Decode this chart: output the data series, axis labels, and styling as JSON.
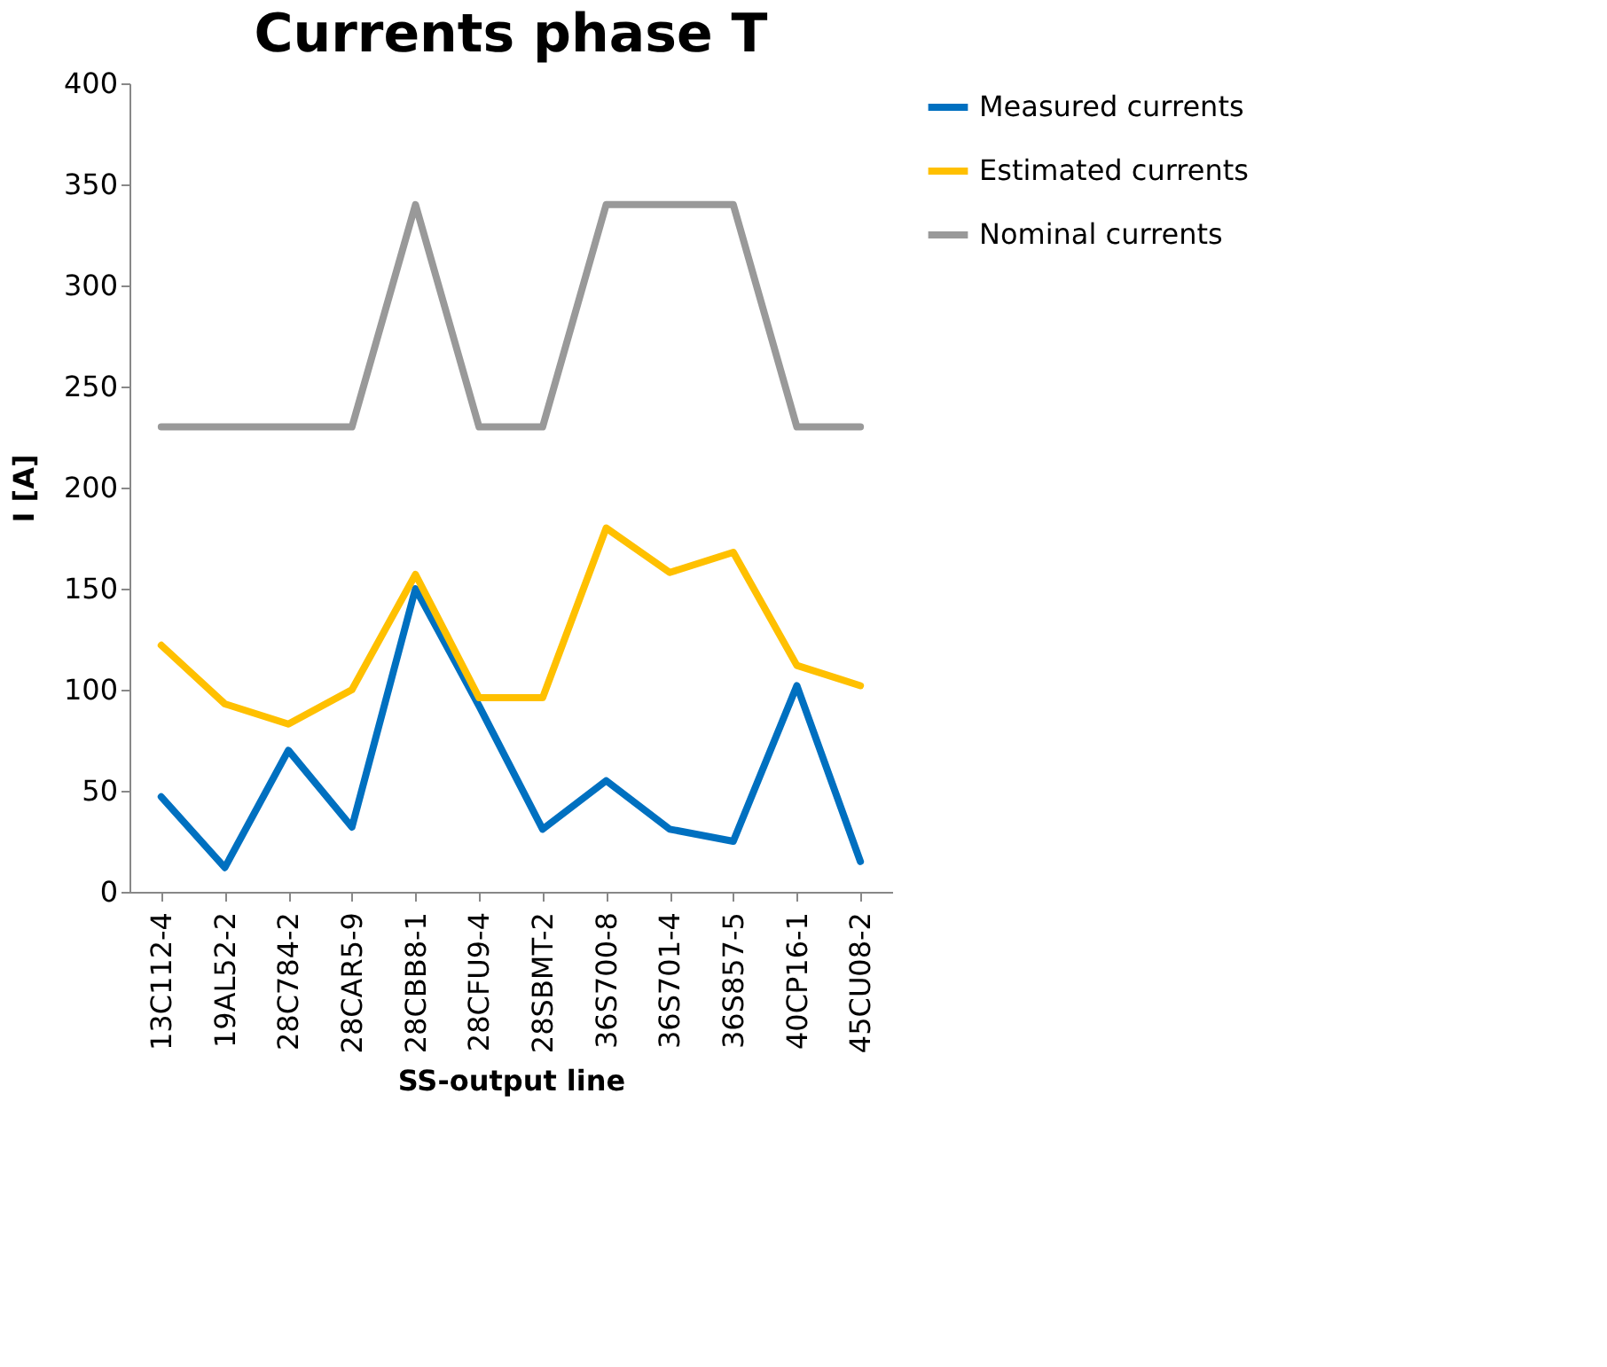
{
  "chart_data": {
    "type": "line",
    "title": "Currents phase T",
    "xlabel": "SS-output line",
    "ylabel": "I [A]",
    "categories": [
      "13C112-4",
      "19AL52-2",
      "28C784-2",
      "28CAR5-9",
      "28CBB8-1",
      "28CFU9-4",
      "28SBMT-2",
      "36S700-8",
      "36S701-4",
      "36S857-5",
      "40CP16-1",
      "45CU08-2"
    ],
    "series": [
      {
        "name": "Measured currents",
        "color": "#0070c0",
        "values": [
          47,
          12,
          70,
          32,
          150,
          92,
          31,
          55,
          31,
          25,
          102,
          15
        ]
      },
      {
        "name": "Estimated currents",
        "color": "#ffc000",
        "values": [
          122,
          93,
          83,
          100,
          157,
          96,
          96,
          180,
          158,
          168,
          112,
          102
        ]
      },
      {
        "name": "Nominal currents",
        "color": "#999999",
        "values": [
          230,
          230,
          230,
          230,
          340,
          230,
          230,
          340,
          340,
          340,
          230,
          230
        ]
      }
    ],
    "ylim": [
      0,
      400
    ],
    "yticks": [
      0,
      50,
      100,
      150,
      200,
      250,
      300,
      350,
      400
    ],
    "grid": false,
    "legend": "right",
    "marker": "none",
    "line_style": "solid"
  }
}
